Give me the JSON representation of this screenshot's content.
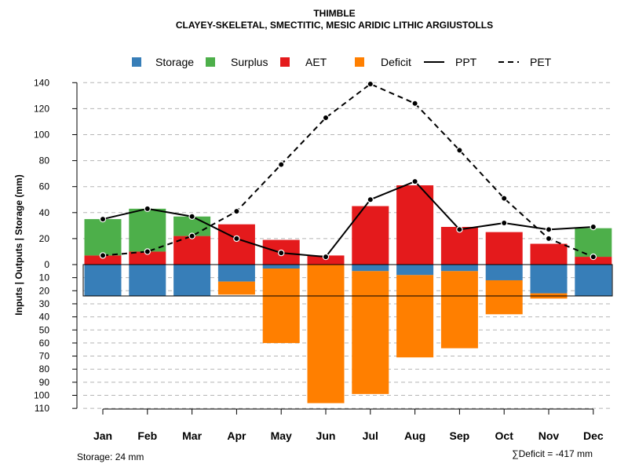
{
  "chart_data": {
    "type": "bar",
    "title": "THIMBLE",
    "subtitle": "CLAYEY-SKELETAL, SMECTITIC, MESIC ARIDIC LITHIC ARGIUSTOLLS",
    "ylabel": "Inputs | Outputs | Storage    (mm)",
    "categories": [
      "Jan",
      "Feb",
      "Mar",
      "Apr",
      "May",
      "Jun",
      "Jul",
      "Aug",
      "Sep",
      "Oct",
      "Nov",
      "Dec"
    ],
    "upper_ticks": [
      "0",
      "20",
      "40",
      "60",
      "80",
      "100",
      "120",
      "140"
    ],
    "lower_ticks": [
      "10",
      "20",
      "30",
      "40",
      "50",
      "60",
      "70",
      "80",
      "90",
      "100",
      "110"
    ],
    "upper_ylim": [
      0,
      140
    ],
    "lower_ylim": [
      0,
      110
    ],
    "legend": [
      {
        "label": "Storage",
        "kind": "box",
        "color": "#377eb8"
      },
      {
        "label": "Surplus",
        "kind": "box",
        "color": "#4daf4a"
      },
      {
        "label": "AET",
        "kind": "box",
        "color": "#e41a1c"
      },
      {
        "label": "Deficit",
        "kind": "box",
        "color": "#ff7f00"
      },
      {
        "label": "PPT",
        "kind": "solid",
        "color": "#000000"
      },
      {
        "label": "PET",
        "kind": "dashed",
        "color": "#000000"
      }
    ],
    "series": [
      {
        "name": "AET",
        "color": "#e41a1c",
        "values": [
          7,
          10,
          22,
          31,
          19,
          7,
          45,
          61,
          29,
          25,
          16,
          6
        ]
      },
      {
        "name": "Surplus",
        "color": "#4daf4a",
        "values": [
          28,
          33,
          15,
          0,
          0,
          0,
          0,
          0,
          0,
          0,
          0,
          22
        ]
      },
      {
        "name": "Storage",
        "color": "#377eb8",
        "values": [
          24,
          24,
          24,
          13,
          3,
          0,
          5,
          8,
          5,
          12,
          22,
          24
        ]
      },
      {
        "name": "Deficit",
        "color": "#ff7f00",
        "values": [
          0,
          0,
          0,
          10,
          57,
          106,
          94,
          63,
          59,
          26,
          4,
          0
        ]
      },
      {
        "name": "PPT",
        "color": "#000000",
        "values": [
          35,
          43,
          37,
          20,
          9,
          6,
          50,
          64,
          27,
          32,
          27,
          29
        ]
      },
      {
        "name": "PET",
        "color": "#000000",
        "values": [
          7,
          10,
          22,
          41,
          77,
          113,
          139,
          124,
          88,
          51,
          20,
          6
        ]
      }
    ],
    "storage_capacity": 24,
    "footer_left": "Storage: 24 mm",
    "footer_right": "∑Deficit = -417 mm"
  }
}
